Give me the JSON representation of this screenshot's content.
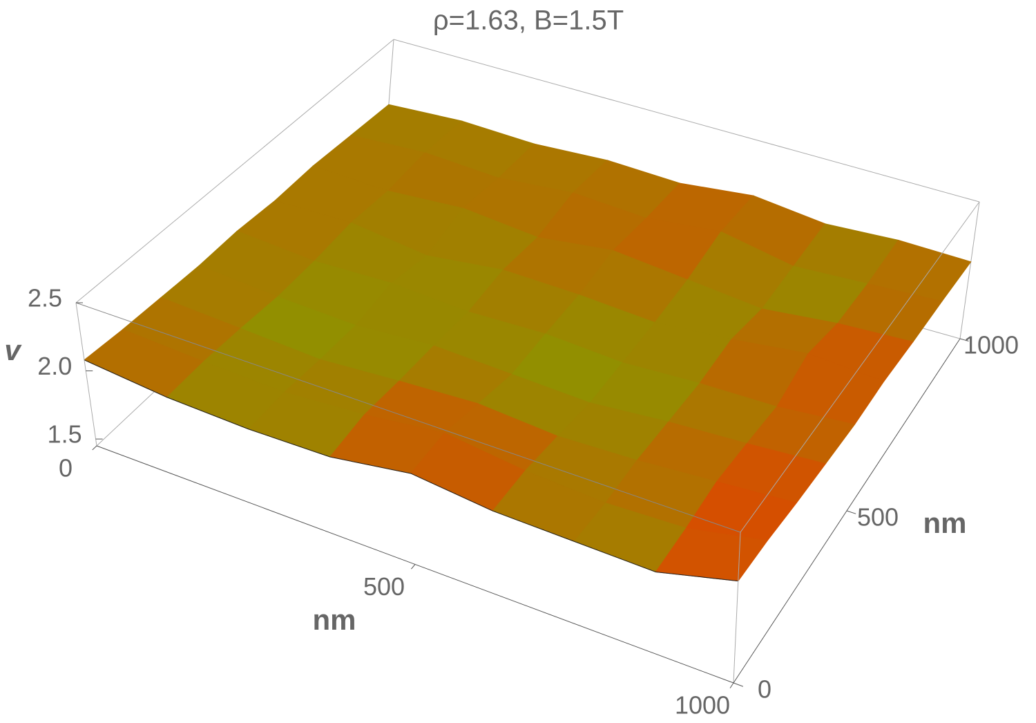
{
  "chart_data": {
    "type": "surface3d",
    "title": "ρ=1.63, B=1.5T",
    "x_label": "nm",
    "y_label": "nm",
    "z_label": "v",
    "x": [
      0,
      125,
      250,
      375,
      500,
      625,
      750,
      875,
      1000
    ],
    "y": [
      0,
      125,
      250,
      375,
      500,
      625,
      750,
      875,
      1000
    ],
    "z": [
      [
        2.08,
        2.02,
        2.0,
        2.01,
        2.1,
        2.04,
        2.03,
        2.02,
        2.16
      ],
      [
        2.06,
        2.03,
        2.01,
        2.05,
        2.12,
        2.05,
        2.02,
        2.04,
        2.15
      ],
      [
        2.05,
        2.02,
        1.99,
        2.03,
        2.06,
        2.02,
        2.04,
        2.08,
        2.12
      ],
      [
        2.04,
        2.0,
        1.98,
        2.02,
        2.0,
        1.98,
        2.03,
        2.06,
        2.1
      ],
      [
        2.05,
        2.01,
        2.03,
        2.0,
        2.02,
        1.99,
        2.02,
        2.03,
        2.08
      ],
      [
        2.03,
        2.04,
        1.97,
        2.04,
        2.03,
        2.0,
        2.05,
        2.12,
        2.09
      ],
      [
        2.04,
        2.02,
        2.06,
        2.01,
        2.08,
        2.03,
        1.98,
        2.04,
        2.07
      ],
      [
        2.02,
        2.05,
        2.02,
        2.07,
        2.04,
        2.1,
        2.0,
        2.03,
        2.06
      ],
      [
        2.0,
        2.03,
        2.01,
        2.04,
        2.02,
        2.08,
        2.02,
        2.05,
        2.04
      ]
    ],
    "xlim": [
      0,
      1000
    ],
    "ylim": [
      0,
      1000
    ],
    "zlim": [
      1.45,
      2.5
    ],
    "xticks": [
      0,
      500,
      1000
    ],
    "yticks": [
      0,
      500,
      1000
    ],
    "zticks": [
      1.5,
      {
        "value": 2,
        "label": "2.0"
      },
      2.5
    ],
    "colormap": [
      "#7fa000",
      "#ff2800"
    ]
  }
}
